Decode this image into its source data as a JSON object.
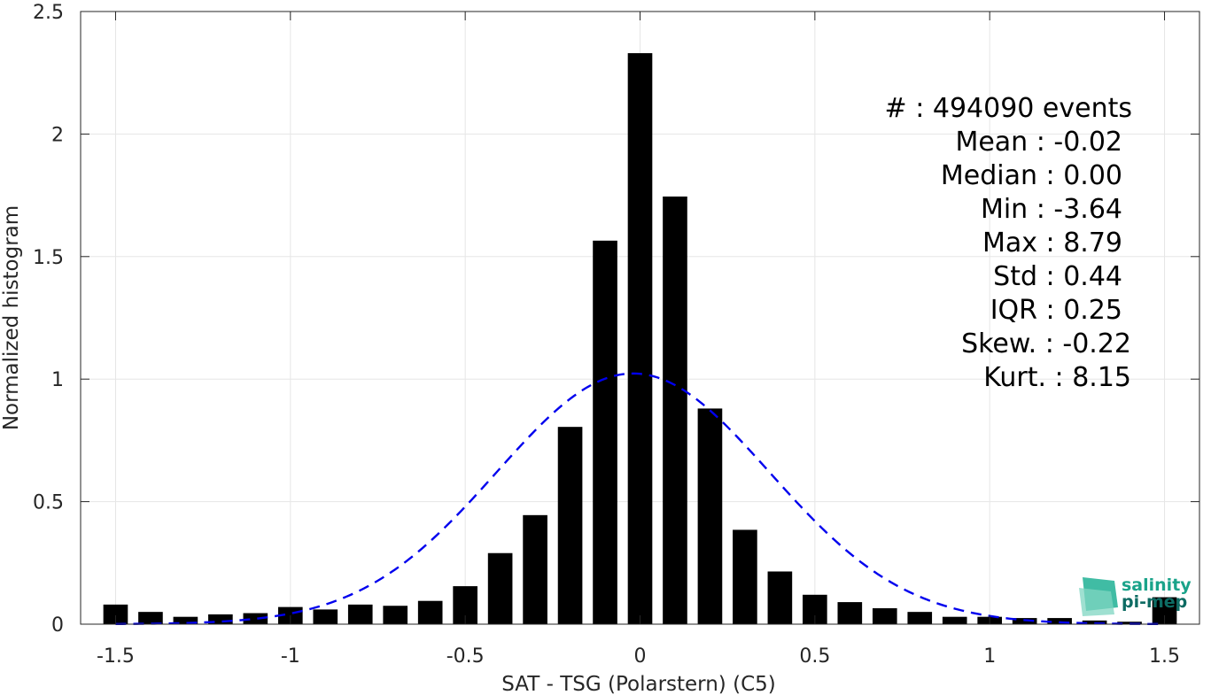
{
  "chart_data": {
    "type": "bar",
    "xlabel": "SAT - TSG (Polarstern) (C5)",
    "ylabel": "Normalized histogram",
    "xlim": [
      -1.6,
      1.6
    ],
    "ylim": [
      0,
      2.5
    ],
    "xticks": [
      -1.5,
      -1,
      -0.5,
      0,
      0.5,
      1,
      1.5
    ],
    "xtick_labels": [
      "-1.5",
      "-1",
      "-0.5",
      "0",
      "0.5",
      "1",
      "1.5"
    ],
    "yticks": [
      0,
      0.5,
      1,
      1.5,
      2,
      2.5
    ],
    "ytick_labels": [
      "0",
      "0.5",
      "1",
      "1.5",
      "2",
      "2.5"
    ],
    "grid": true,
    "bar_color": "#000000",
    "bar_width": 0.07,
    "bins": [
      -1.5,
      -1.4,
      -1.3,
      -1.2,
      -1.1,
      -1.0,
      -0.9,
      -0.8,
      -0.7,
      -0.6,
      -0.5,
      -0.4,
      -0.3,
      -0.2,
      -0.1,
      0.0,
      0.1,
      0.2,
      0.3,
      0.4,
      0.5,
      0.6,
      0.7,
      0.8,
      0.9,
      1.0,
      1.1,
      1.2,
      1.3,
      1.4,
      1.5
    ],
    "values": [
      0.08,
      0.05,
      0.03,
      0.04,
      0.045,
      0.07,
      0.06,
      0.08,
      0.075,
      0.095,
      0.155,
      0.29,
      0.445,
      0.805,
      1.565,
      2.33,
      1.745,
      0.88,
      0.385,
      0.215,
      0.12,
      0.09,
      0.065,
      0.05,
      0.03,
      0.03,
      0.025,
      0.025,
      0.015,
      0.01,
      0.11
    ],
    "fit": {
      "type": "gaussian",
      "mean": -0.02,
      "std": 0.39,
      "color": "#0000ee",
      "style": "dashed"
    },
    "stats": [
      "#  : 494090 events",
      "Mean : -0.02",
      "Median : 0.00",
      "Min : -3.64",
      "Max : 8.79",
      "Std : 0.44",
      "IQR : 0.25",
      "Skew. : -0.22",
      "Kurt. : 8.15"
    ]
  },
  "logo": {
    "line1": "salinity",
    "line2": "pi-mep",
    "color1": "#1aa38a",
    "color2": "#0d6b63"
  }
}
